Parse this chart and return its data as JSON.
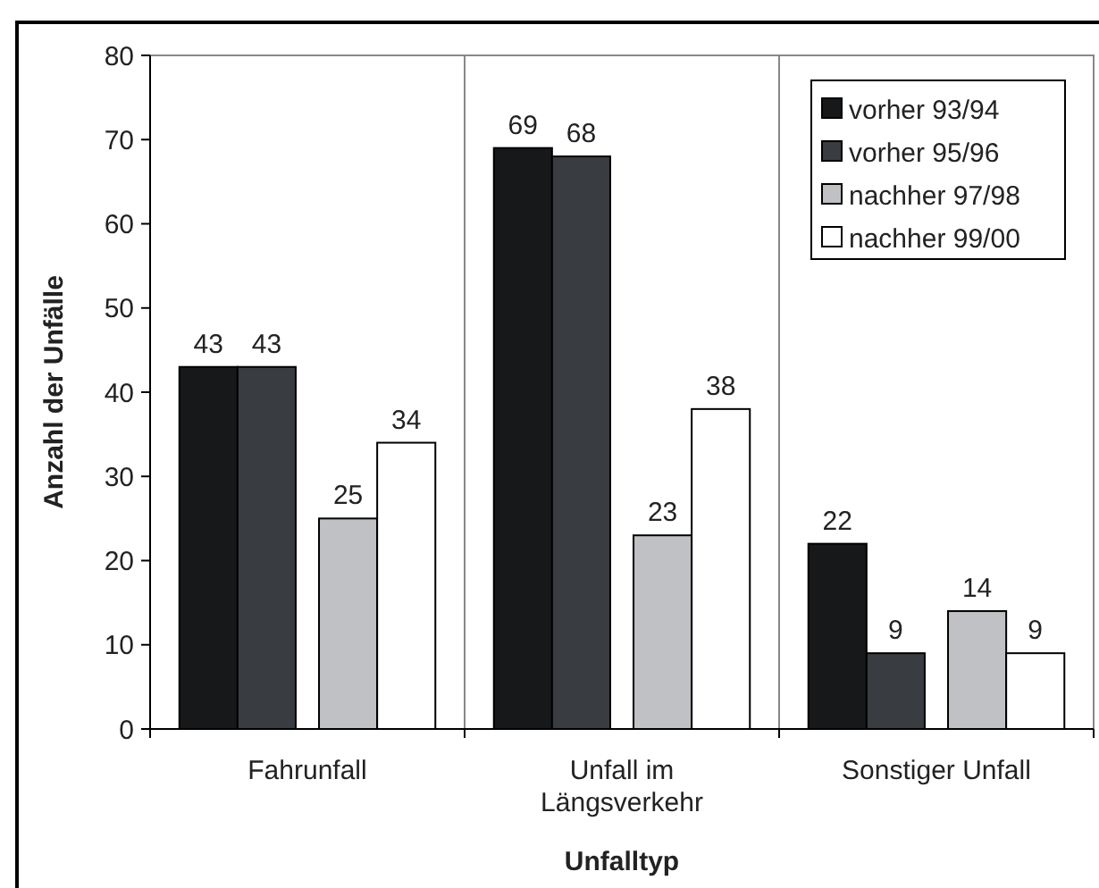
{
  "chart_data": {
    "type": "bar",
    "xlabel": "Unfalltyp",
    "ylabel": "Anzahl der Unfälle",
    "categories": [
      "Fahrunfall",
      "Unfall im Längsverkehr",
      "Sonstiger Unfall"
    ],
    "series": [
      {
        "name": "vorher 93/94",
        "color": "#16181a",
        "values": [
          43,
          69,
          22
        ]
      },
      {
        "name": "vorher 95/96",
        "color": "#393c40",
        "values": [
          43,
          68,
          9
        ]
      },
      {
        "name": "nachher 97/98",
        "color": "#c0c1c4",
        "values": [
          25,
          23,
          14
        ]
      },
      {
        "name": "nachher 99/00",
        "color": "#ffffff",
        "values": [
          34,
          38,
          9
        ]
      }
    ],
    "ylim": [
      0,
      80
    ],
    "yticks": [
      0,
      10,
      20,
      30,
      40,
      50,
      60,
      70,
      80
    ],
    "data_labels": true,
    "legend": "top right",
    "grid": false
  }
}
